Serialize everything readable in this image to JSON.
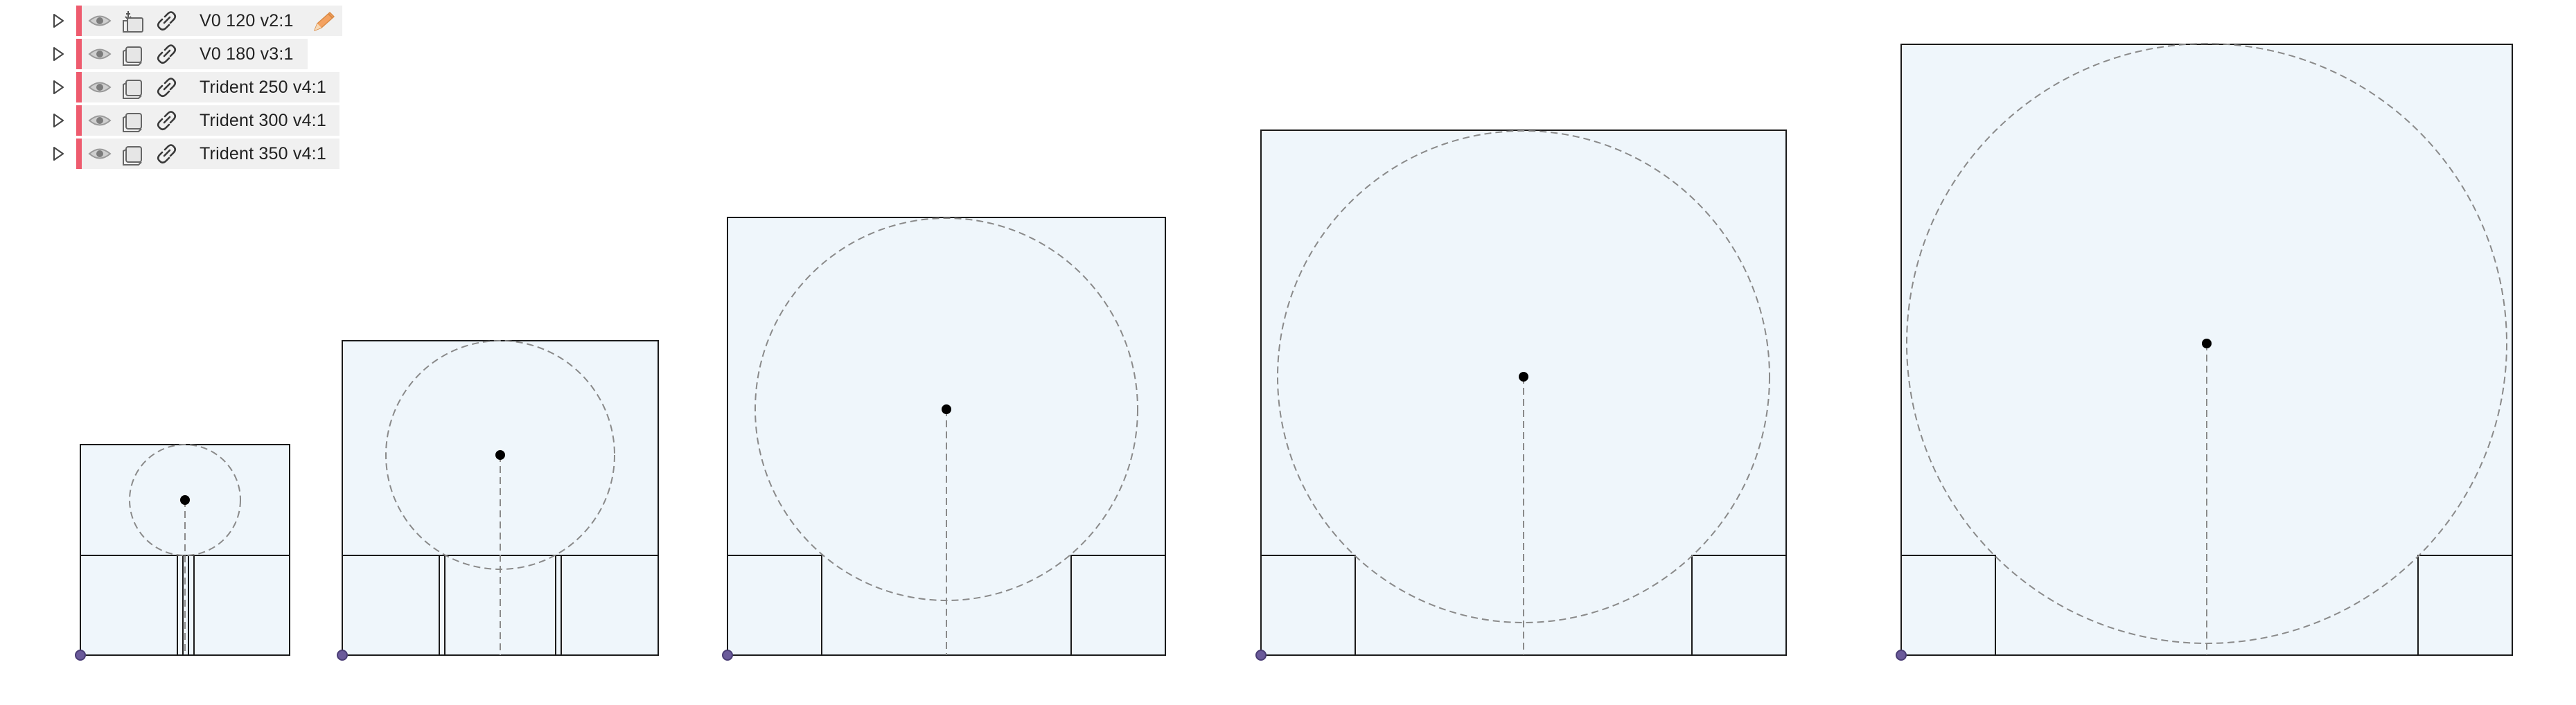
{
  "browser": {
    "items": [
      {
        "label": "V0 120 v2:1",
        "color": "#ee5b6e",
        "icon": "component-with-origin-icon",
        "edit": true
      },
      {
        "label": "V0 180 v3:1",
        "color": "#ee5b6e",
        "icon": "component-icon",
        "edit": false
      },
      {
        "label": "Trident 250 v4:1",
        "color": "#ee5b6e",
        "icon": "component-icon",
        "edit": false
      },
      {
        "label": "Trident 300 v4:1",
        "color": "#ee5b6e",
        "icon": "component-icon",
        "edit": false
      },
      {
        "label": "Trident 350 v4:1",
        "color": "#ee5b6e",
        "icon": "component-icon",
        "edit": false
      }
    ]
  },
  "colors": {
    "panel_fill": "#eff6fb",
    "outline": "#1a1a1a",
    "construction": "#8a8a8a",
    "origin": "#6a5a9a",
    "center_point": "#000000",
    "row_marker": "#ee5b6e",
    "pencil": "#f4a261"
  }
}
